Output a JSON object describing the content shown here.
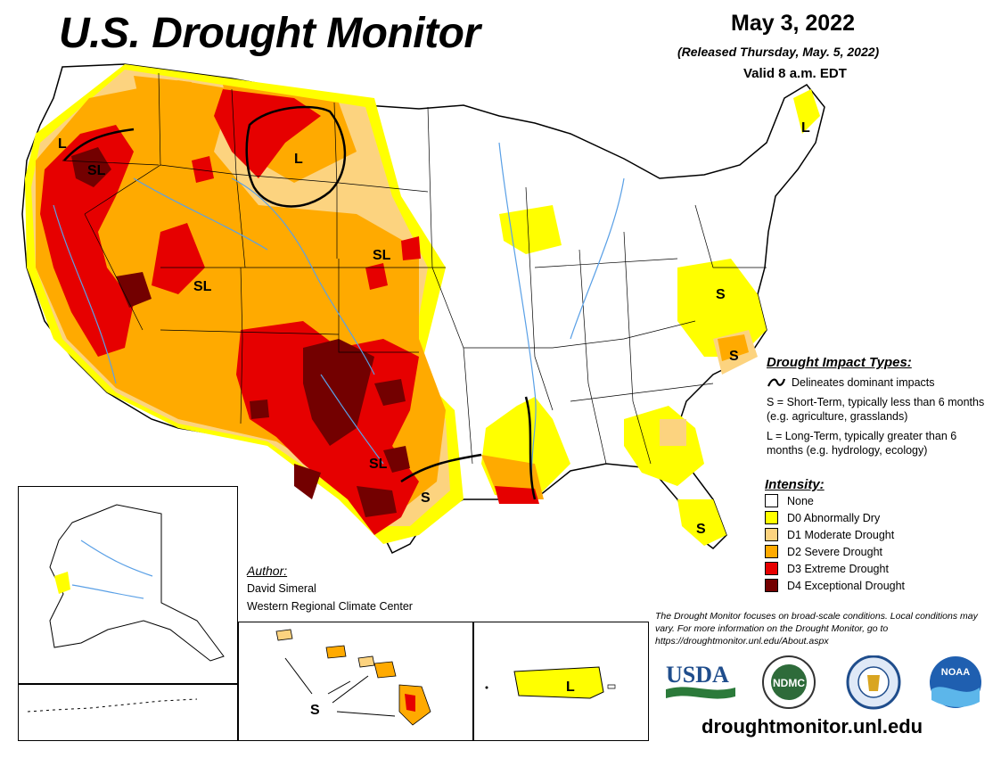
{
  "header": {
    "title": "U.S. Drought Monitor",
    "date": "May 3, 2022",
    "released": "(Released Thursday, May. 5, 2022)",
    "valid": "Valid 8 a.m. EDT"
  },
  "impact_types": {
    "heading": "Drought Impact Types:",
    "delineates": "Delineates dominant impacts",
    "short_term": "S = Short-Term, typically less than 6 months (e.g. agriculture, grasslands)",
    "long_term": "L = Long-Term, typically greater than 6 months (e.g. hydrology, ecology)"
  },
  "intensity": {
    "heading": "Intensity:",
    "items": [
      {
        "label": "None",
        "color": "#ffffff"
      },
      {
        "label": "D0 Abnormally Dry",
        "color": "#ffff00"
      },
      {
        "label": "D1 Moderate Drought",
        "color": "#fcd37f"
      },
      {
        "label": "D2 Severe Drought",
        "color": "#ffaa00"
      },
      {
        "label": "D3 Extreme Drought",
        "color": "#e60000"
      },
      {
        "label": "D4 Exceptional Drought",
        "color": "#730000"
      }
    ]
  },
  "author": {
    "heading": "Author:",
    "name": "David Simeral",
    "org": "Western Regional Climate Center"
  },
  "note": "The Drought Monitor focuses on broad-scale conditions. Local conditions may vary. For more information on the Drought Monitor, go to https://droughtmonitor.unl.edu/About.aspx",
  "logos": {
    "usda": "USDA",
    "ndmc": "NDMC",
    "noaa": "NOAA"
  },
  "url": "droughtmonitor.unl.edu",
  "map_labels": {
    "west_l": "L",
    "sl_northwest": "SL",
    "l_montana": "L",
    "sl_great_basin": "SL",
    "sl_plains": "SL",
    "sl_texas": "SL",
    "s_texas_coast": "S",
    "s_virginia": "S",
    "s_carolina": "S",
    "s_florida": "S",
    "l_maine": "L",
    "s_hawaii": "S",
    "l_puerto_rico": "L"
  }
}
